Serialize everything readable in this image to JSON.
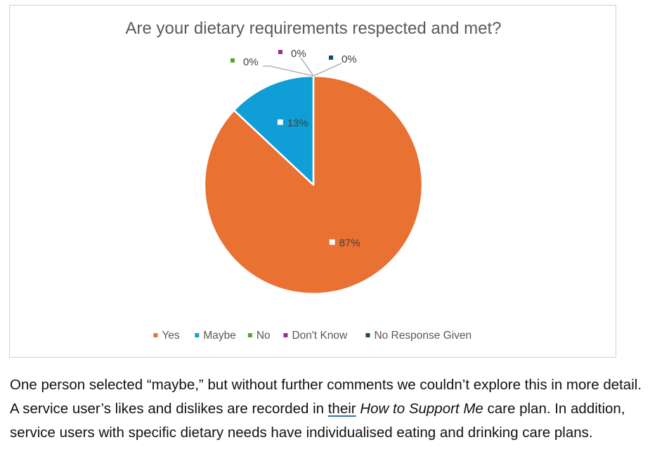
{
  "chart_data": {
    "type": "pie",
    "title": "Are your dietary requirements respected and met?",
    "categories": [
      "Yes",
      "Maybe",
      "No",
      "Don't Know",
      "No Response Given"
    ],
    "values": [
      87,
      13,
      0,
      0,
      0
    ],
    "value_labels": [
      "87%",
      "13%",
      "0%",
      "0%",
      "0%"
    ],
    "colors": [
      "#E97132",
      "#0F9ED5",
      "#4EA72E",
      "#A02B93",
      "#0E4D6E"
    ],
    "start_angle_deg": 0,
    "direction": "clockwise",
    "legend": {
      "position": "bottom",
      "entries": [
        "Yes",
        "Maybe",
        "No",
        "Don't Know",
        "No Response Given"
      ]
    }
  },
  "caption": {
    "part1": "One person selected “maybe,” but without further comments we couldn’t explore this in more detail. A service user’s likes and dislikes are recorded in ",
    "link_word": "their",
    "space": " ",
    "doc_title": "How to Support Me",
    "part2": " care plan. In addition, service users with specific dietary needs have individualised eating and drinking care plans."
  }
}
